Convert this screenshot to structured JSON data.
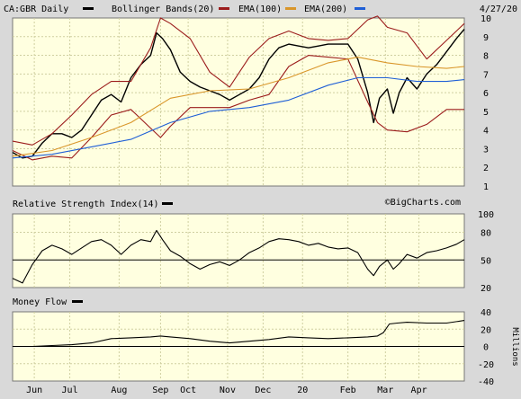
{
  "chart_data": [
    {
      "type": "line",
      "panel": "price",
      "title": "CA:GBR Daily",
      "date": "4/27/20",
      "legend": [
        {
          "label": "CA:GBR Daily",
          "color": "#000000"
        },
        {
          "label": "Bollinger Bands(20)",
          "color": "#9b1c1c"
        },
        {
          "label": "EMA(100)",
          "color": "#d9962a"
        },
        {
          "label": "EMA(200)",
          "color": "#1f5fd6"
        }
      ],
      "watermark": "©BigCharts.com",
      "ylim": [
        1,
        10
      ],
      "yticks": [
        "1",
        "2",
        "3",
        "4",
        "5",
        "6",
        "7",
        "8",
        "9",
        "10"
      ],
      "x_labels": [
        "Jun",
        "Jul",
        "Aug",
        "Sep",
        "Oct",
        "Nov",
        "Dec",
        "20",
        "Feb",
        "Mar",
        "Apr"
      ],
      "x_label_index": [
        11,
        29,
        54,
        75,
        89,
        109,
        127,
        147,
        170,
        189,
        206
      ],
      "series": [
        {
          "name": "CA:GBR Daily",
          "color": "#000000",
          "x": [
            0,
            5,
            10,
            15,
            20,
            25,
            30,
            35,
            40,
            45,
            50,
            55,
            60,
            65,
            70,
            73,
            76,
            80,
            85,
            90,
            95,
            100,
            105,
            110,
            115,
            120,
            125,
            130,
            135,
            140,
            145,
            150,
            155,
            160,
            165,
            170,
            175,
            180,
            183,
            186,
            190,
            193,
            196,
            200,
            205,
            210,
            215,
            220,
            225,
            229
          ],
          "values": [
            2.8,
            2.5,
            2.6,
            3.3,
            3.8,
            3.8,
            3.6,
            4.0,
            4.8,
            5.6,
            5.9,
            5.5,
            6.8,
            7.5,
            8.0,
            9.2,
            8.9,
            8.3,
            7.1,
            6.6,
            6.3,
            6.1,
            5.9,
            5.6,
            5.9,
            6.2,
            6.8,
            7.8,
            8.4,
            8.6,
            8.5,
            8.4,
            8.5,
            8.6,
            8.6,
            8.6,
            7.8,
            6.0,
            4.4,
            5.7,
            6.2,
            4.9,
            6.0,
            6.8,
            6.2,
            7.0,
            7.5,
            8.2,
            8.9,
            9.4
          ]
        },
        {
          "name": "Bollinger Bands upper",
          "color": "#9b1c1c",
          "x": [
            0,
            10,
            20,
            30,
            40,
            50,
            60,
            70,
            75,
            80,
            90,
            100,
            110,
            120,
            130,
            140,
            150,
            160,
            170,
            180,
            185,
            190,
            200,
            210,
            220,
            229
          ],
          "values": [
            3.4,
            3.2,
            3.8,
            4.8,
            5.9,
            6.6,
            6.6,
            8.4,
            10.0,
            9.7,
            8.9,
            7.1,
            6.3,
            7.9,
            8.9,
            9.3,
            8.9,
            8.8,
            8.9,
            9.9,
            10.1,
            9.5,
            9.2,
            7.8,
            8.8,
            9.7
          ]
        },
        {
          "name": "Bollinger Bands lower",
          "color": "#9b1c1c",
          "x": [
            0,
            10,
            20,
            30,
            40,
            50,
            60,
            70,
            75,
            80,
            90,
            100,
            110,
            120,
            130,
            140,
            150,
            160,
            170,
            180,
            185,
            190,
            200,
            210,
            220,
            229
          ],
          "values": [
            2.9,
            2.4,
            2.6,
            2.5,
            3.6,
            4.8,
            5.1,
            4.1,
            3.6,
            4.2,
            5.2,
            5.2,
            5.2,
            5.6,
            5.9,
            7.4,
            8.0,
            7.9,
            7.8,
            5.5,
            4.4,
            4.0,
            3.9,
            4.3,
            5.1,
            5.1
          ]
        },
        {
          "name": "EMA(100)",
          "color": "#d9962a",
          "x": [
            0,
            20,
            40,
            60,
            80,
            100,
            120,
            140,
            160,
            175,
            190,
            205,
            220,
            229
          ],
          "values": [
            2.6,
            2.9,
            3.6,
            4.4,
            5.7,
            6.1,
            6.2,
            6.8,
            7.6,
            7.9,
            7.6,
            7.4,
            7.3,
            7.4
          ]
        },
        {
          "name": "EMA(200)",
          "color": "#1f5fd6",
          "x": [
            0,
            20,
            40,
            60,
            80,
            100,
            120,
            140,
            160,
            175,
            190,
            205,
            220,
            229
          ],
          "values": [
            2.5,
            2.7,
            3.1,
            3.5,
            4.4,
            5.0,
            5.2,
            5.6,
            6.4,
            6.8,
            6.8,
            6.6,
            6.6,
            6.7
          ]
        }
      ]
    },
    {
      "type": "line",
      "panel": "rsi",
      "title": "Relative Strength Index(14)",
      "ylim": [
        20,
        100
      ],
      "yticks": [
        "20",
        "50",
        "80",
        "100"
      ],
      "reference_level": 50,
      "series": [
        {
          "name": "Relative Strength Index(14)",
          "color": "#000000",
          "x": [
            0,
            5,
            10,
            15,
            20,
            25,
            30,
            35,
            40,
            45,
            50,
            55,
            60,
            65,
            70,
            73,
            76,
            80,
            85,
            90,
            95,
            100,
            105,
            110,
            115,
            120,
            125,
            130,
            135,
            140,
            145,
            150,
            155,
            160,
            165,
            170,
            175,
            180,
            183,
            186,
            190,
            193,
            196,
            200,
            205,
            210,
            215,
            220,
            225,
            229
          ],
          "values": [
            30,
            25,
            45,
            60,
            66,
            62,
            56,
            63,
            70,
            72,
            66,
            56,
            66,
            72,
            70,
            82,
            72,
            60,
            54,
            46,
            40,
            45,
            48,
            44,
            50,
            58,
            63,
            70,
            73,
            72,
            70,
            66,
            68,
            64,
            62,
            63,
            58,
            40,
            33,
            43,
            50,
            40,
            46,
            56,
            52,
            58,
            60,
            63,
            67,
            72
          ]
        }
      ]
    },
    {
      "type": "line",
      "panel": "money_flow",
      "title": "Money Flow",
      "ylabel": "Millions",
      "ylim": [
        -40,
        40
      ],
      "yticks": [
        "40",
        "20",
        "0",
        "-20",
        "-40"
      ],
      "series": [
        {
          "name": "Money Flow",
          "color": "#000000",
          "x": [
            0,
            10,
            20,
            30,
            40,
            50,
            60,
            70,
            75,
            80,
            90,
            100,
            110,
            120,
            130,
            140,
            150,
            160,
            170,
            180,
            185,
            188,
            191,
            195,
            200,
            210,
            220,
            229
          ],
          "values": [
            0,
            0,
            1,
            2,
            4,
            9,
            10,
            11,
            12,
            11,
            9,
            6,
            4,
            6,
            8,
            11,
            10,
            9,
            10,
            11,
            12,
            16,
            26,
            27,
            28,
            27,
            27,
            30
          ]
        }
      ]
    }
  ]
}
